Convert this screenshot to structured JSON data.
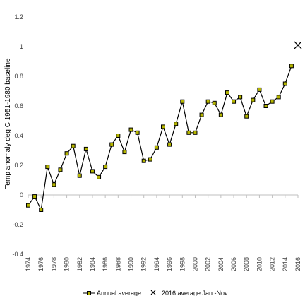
{
  "chart_data": {
    "type": "line",
    "title": "",
    "xlabel": "",
    "ylabel": "Temp anomaly deg C 1951-1980 baseline",
    "xlim": [
      1974,
      2016
    ],
    "ylim": [
      -0.4,
      1.2
    ],
    "xticks": [
      "1974",
      "1976",
      "1978",
      "1980",
      "1982",
      "1984",
      "1986",
      "1988",
      "1990",
      "1992",
      "1994",
      "1996",
      "1998",
      "2000",
      "2002",
      "2004",
      "2006",
      "2008",
      "2010",
      "2012",
      "2014",
      "2016"
    ],
    "yticks": [
      "-0.4",
      "-0.2",
      "0",
      "0.2",
      "0.4",
      "0.6",
      "0.8",
      "1",
      "1.2"
    ],
    "grid": false,
    "legend_position": "bottom",
    "series": [
      {
        "name": "Annual average",
        "color": "#000000",
        "marker_color": "#b5b500",
        "x": [
          1974,
          1975,
          1976,
          1977,
          1978,
          1979,
          1980,
          1981,
          1982,
          1983,
          1984,
          1985,
          1986,
          1987,
          1988,
          1989,
          1990,
          1991,
          1992,
          1993,
          1994,
          1995,
          1996,
          1997,
          1998,
          1999,
          2000,
          2001,
          2002,
          2003,
          2004,
          2005,
          2006,
          2007,
          2008,
          2009,
          2010,
          2011,
          2012,
          2013,
          2014,
          2015
        ],
        "y": [
          -0.07,
          -0.01,
          -0.1,
          0.19,
          0.07,
          0.17,
          0.28,
          0.33,
          0.13,
          0.31,
          0.16,
          0.12,
          0.19,
          0.34,
          0.4,
          0.29,
          0.44,
          0.42,
          0.23,
          0.24,
          0.32,
          0.46,
          0.34,
          0.48,
          0.63,
          0.42,
          0.42,
          0.54,
          0.63,
          0.62,
          0.54,
          0.69,
          0.63,
          0.66,
          0.53,
          0.64,
          0.71,
          0.6,
          0.63,
          0.66,
          0.75,
          0.87
        ]
      },
      {
        "name": "2016 average Jan -Nov",
        "marker": "x",
        "color": "#000000",
        "x": [
          2016
        ],
        "y": [
          1.01
        ]
      }
    ]
  }
}
